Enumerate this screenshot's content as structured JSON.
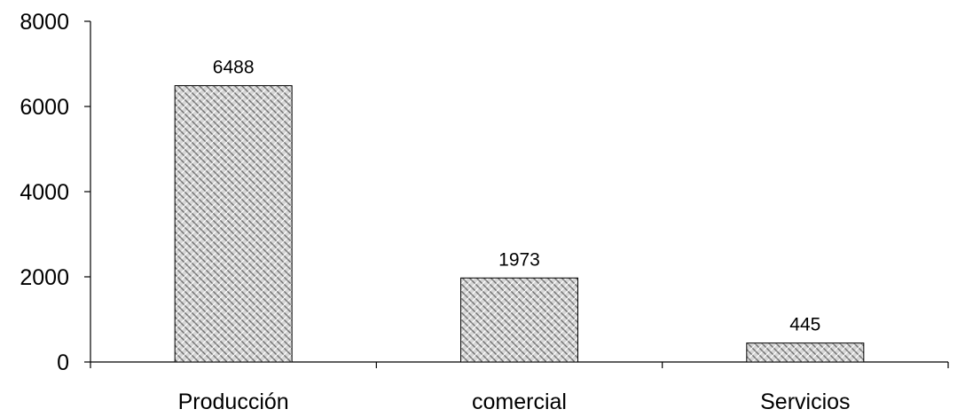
{
  "chart_data": {
    "type": "bar",
    "categories": [
      "Producción",
      "comercial",
      "Servicios"
    ],
    "values": [
      6488,
      1973,
      445
    ],
    "data_labels": [
      "6488",
      "1973",
      "445"
    ],
    "title": "",
    "xlabel": "",
    "ylabel": "",
    "ylim": [
      0,
      8000
    ],
    "yticks": [
      0,
      2000,
      4000,
      6000,
      8000
    ],
    "ytick_labels": [
      "0",
      "2000",
      "4000",
      "6000",
      "8000"
    ],
    "grid": false,
    "legend": "none",
    "bar_fill": "crosshatch pattern (grey/white)",
    "colors": {
      "bar_base": "#c8c8c8",
      "bar_pattern": "#6e6e6e",
      "axis": "#000000"
    }
  }
}
